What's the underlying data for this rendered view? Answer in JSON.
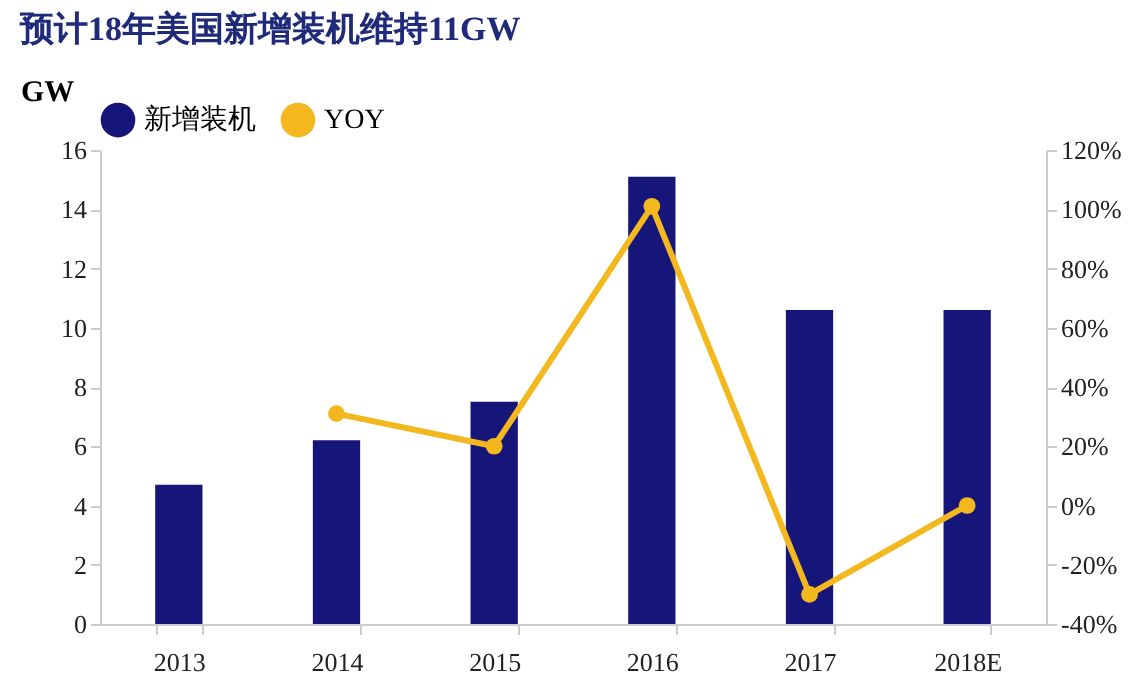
{
  "chart_data": {
    "type": "bar",
    "title": "预计18年美国新增装机维持11GW",
    "ylabel": "GW",
    "categories": [
      "2013",
      "2014",
      "2015",
      "2016",
      "2017",
      "2018E"
    ],
    "series": [
      {
        "name": "新增装机",
        "color": "#15157a",
        "values": [
          4.7,
          6.2,
          7.5,
          15.1,
          10.6,
          10.6
        ]
      },
      {
        "name": "YOY",
        "type": "line",
        "axis": "y2",
        "color": "#f2b81e",
        "values": [
          null,
          31,
          20,
          101,
          -30,
          0
        ]
      }
    ],
    "ylim": [
      0,
      16
    ],
    "yticks": [
      0,
      2,
      4,
      6,
      8,
      10,
      12,
      14,
      16
    ],
    "y2lim": [
      -40,
      120
    ],
    "y2ticks": [
      {
        "value": -40,
        "label": "-40%"
      },
      {
        "value": -20,
        "label": "-20%"
      },
      {
        "value": 0,
        "label": "0%"
      },
      {
        "value": 20,
        "label": "20%"
      },
      {
        "value": 40,
        "label": "40%"
      },
      {
        "value": 60,
        "label": "60%"
      },
      {
        "value": 80,
        "label": "80%"
      },
      {
        "value": 100,
        "label": "100%"
      },
      {
        "value": 120,
        "label": "120%"
      }
    ],
    "marker": "circle",
    "grid": false,
    "legend": "top"
  }
}
